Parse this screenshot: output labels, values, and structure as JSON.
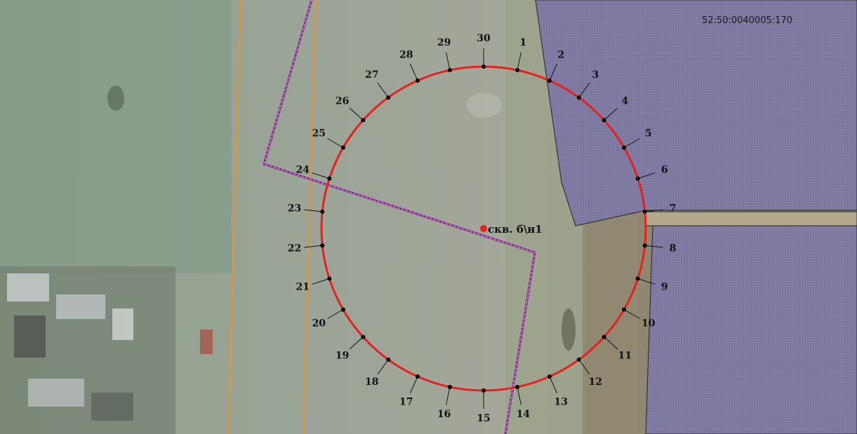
{
  "parcel": {
    "cadastral_number": "52:50:0040005:170"
  },
  "well": {
    "label": "скв. б\\н1",
    "marker_color": "#e8201c"
  },
  "zone": {
    "circle_color": "#e8201c",
    "point_color": "#000000",
    "points": [
      "1",
      "2",
      "3",
      "4",
      "5",
      "6",
      "7",
      "8",
      "9",
      "10",
      "11",
      "12",
      "13",
      "14",
      "15",
      "16",
      "17",
      "18",
      "19",
      "20",
      "21",
      "22",
      "23",
      "24",
      "25",
      "26",
      "27",
      "28",
      "29",
      "30"
    ]
  },
  "colors": {
    "field": "#8f9a86",
    "parcel_fill": "#7f7aa0",
    "road_lines": "#e7922e",
    "boundary_line": "#8b2a90"
  }
}
